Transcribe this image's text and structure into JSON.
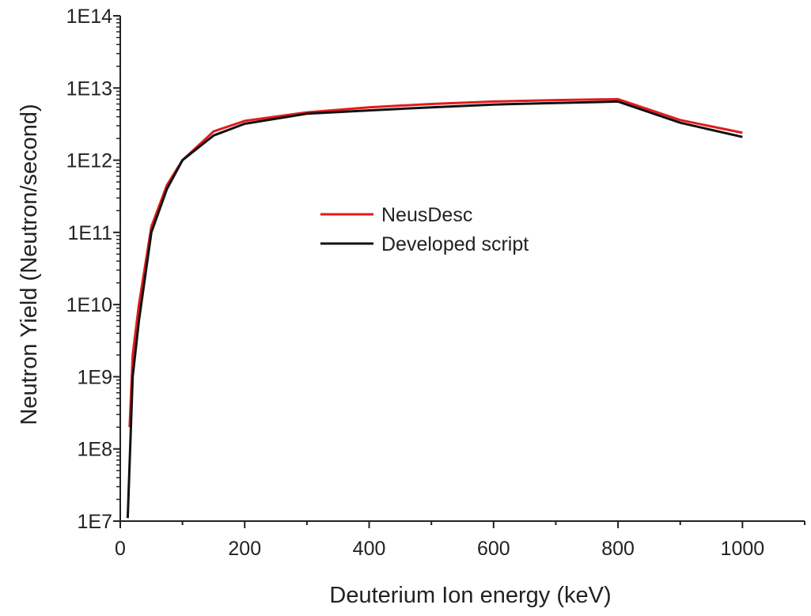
{
  "chart_data": {
    "type": "line",
    "title": "",
    "xlabel": "Deuterium Ion energy (keV)",
    "ylabel": "Neutron Yield (Neutron/second)",
    "xlim": [
      0,
      1100
    ],
    "ylim": [
      10000000,
      100000000000000
    ],
    "yscale": "log",
    "xticks": [
      0,
      200,
      400,
      600,
      800,
      1000
    ],
    "xtick_labels": [
      "0",
      "200",
      "400",
      "600",
      "800",
      "1000"
    ],
    "yticks": [
      10000000,
      100000000,
      1000000000,
      10000000000,
      100000000000,
      1000000000000,
      10000000000000,
      100000000000000
    ],
    "ytick_labels": [
      "1E7",
      "1E8",
      "1E9",
      "1E10",
      "1E11",
      "1E12",
      "1E13",
      "1E14"
    ],
    "grid": false,
    "legend_position": "center",
    "series": [
      {
        "name": "NeusDesc",
        "color": "#e41a1c",
        "x": [
          15,
          20,
          30,
          50,
          75,
          100,
          150,
          200,
          300,
          400,
          500,
          600,
          700,
          800,
          900,
          1000
        ],
        "y": [
          200000000,
          2000000000,
          10000000000,
          120000000000,
          450000000000,
          1000000000000,
          2500000000000,
          3500000000000,
          4600000000000,
          5400000000000,
          6000000000000,
          6500000000000,
          6800000000000,
          7000000000000,
          3600000000000,
          2400000000000
        ]
      },
      {
        "name": "Developed script",
        "color": "#111111",
        "x": [
          12,
          20,
          30,
          50,
          75,
          100,
          150,
          200,
          300,
          400,
          500,
          600,
          700,
          800,
          900,
          1000
        ],
        "y": [
          11000000,
          1000000000,
          6000000000,
          100000000000,
          400000000000,
          1000000000000,
          2200000000000,
          3200000000000,
          4400000000000,
          4900000000000,
          5400000000000,
          5900000000000,
          6200000000000,
          6500000000000,
          3300000000000,
          2100000000000
        ]
      }
    ]
  }
}
